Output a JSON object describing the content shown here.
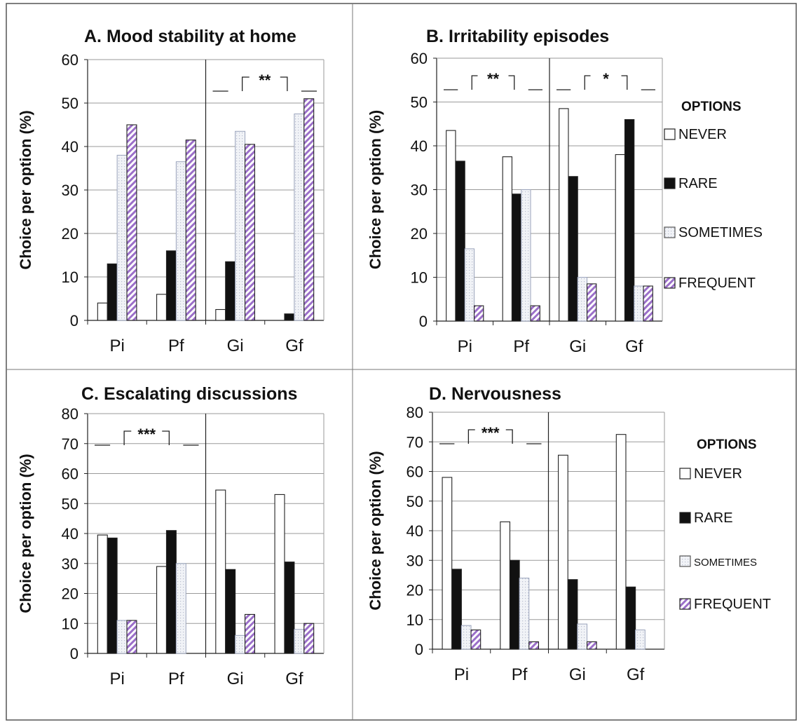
{
  "colors": {
    "never": "#ffffff",
    "rare": "#111111",
    "sometimes": "#f1f3f7",
    "frequent": "#9b6fc9",
    "grid": "#9a9a9a",
    "text": "#111111"
  },
  "icons": {
    "never": "white-box",
    "rare": "black-box",
    "sometimes": "dotted-box",
    "frequent": "hatched-box"
  },
  "chart_data": [
    {
      "type": "bar",
      "title": "A.   Mood stability at home",
      "ylabel": "Choice per option (%)",
      "categories": [
        "Pi",
        "Pf",
        "Gi",
        "Gf"
      ],
      "ylim": [
        0,
        60
      ],
      "yticks": [
        0,
        10,
        20,
        30,
        40,
        50,
        60
      ],
      "series": [
        {
          "name": "NEVER",
          "values": [
            4,
            6,
            2.5,
            0
          ]
        },
        {
          "name": "RARE",
          "values": [
            13,
            16,
            13.5,
            1.5
          ]
        },
        {
          "name": "SOMETIMES",
          "values": [
            38,
            36.5,
            43.5,
            47.5
          ]
        },
        {
          "name": "FREQUENT",
          "values": [
            45,
            41.5,
            40.5,
            51
          ]
        }
      ],
      "significance": [
        {
          "label": "**",
          "between": [
            "Gi",
            "Gf"
          ]
        }
      ],
      "legend": null
    },
    {
      "type": "bar",
      "title": "B.   Irritability episodes",
      "ylabel": "Choice per option (%)",
      "categories": [
        "Pi",
        "Pf",
        "Gi",
        "Gf"
      ],
      "ylim": [
        0,
        60
      ],
      "yticks": [
        0,
        10,
        20,
        30,
        40,
        50,
        60
      ],
      "series": [
        {
          "name": "NEVER",
          "values": [
            43.5,
            37.5,
            48.5,
            38
          ]
        },
        {
          "name": "RARE",
          "values": [
            36.5,
            29,
            33,
            46
          ]
        },
        {
          "name": "SOMETIMES",
          "values": [
            16.5,
            30,
            10,
            8
          ]
        },
        {
          "name": "FREQUENT",
          "values": [
            3.5,
            3.5,
            8.5,
            8
          ]
        }
      ],
      "significance": [
        {
          "label": "**",
          "between": [
            "Pi",
            "Pf"
          ]
        },
        {
          "label": "*",
          "between": [
            "Gi",
            "Gf"
          ]
        }
      ],
      "legend": {
        "title": "OPTIONS",
        "placement": "right",
        "items": [
          "NEVER",
          "RARE",
          "SOMETIMES",
          "FREQUENT"
        ]
      }
    },
    {
      "type": "bar",
      "title": "C. Escalating discussions",
      "ylabel": "Choice per option (%)",
      "categories": [
        "Pi",
        "Pf",
        "Gi",
        "Gf"
      ],
      "ylim": [
        0,
        80
      ],
      "yticks": [
        0,
        10,
        20,
        30,
        40,
        50,
        60,
        70,
        80
      ],
      "series": [
        {
          "name": "NEVER",
          "values": [
            39.5,
            29,
            54.5,
            53
          ]
        },
        {
          "name": "RARE",
          "values": [
            38.5,
            41,
            28,
            30.5
          ]
        },
        {
          "name": "SOMETIMES",
          "values": [
            11,
            30,
            6,
            8
          ]
        },
        {
          "name": "FREQUENT",
          "values": [
            11,
            0,
            13,
            10
          ]
        }
      ],
      "significance": [
        {
          "label": "***",
          "between": [
            "Pi",
            "Pf"
          ]
        }
      ],
      "legend": null
    },
    {
      "type": "bar",
      "title": "D.   Nervousness",
      "ylabel": "Choice per option (%)",
      "categories": [
        "Pi",
        "Pf",
        "Gi",
        "Gf"
      ],
      "ylim": [
        0,
        80
      ],
      "yticks": [
        0,
        10,
        20,
        30,
        40,
        50,
        60,
        70,
        80
      ],
      "series": [
        {
          "name": "NEVER",
          "values": [
            58,
            43,
            65.5,
            72.5
          ]
        },
        {
          "name": "RARE",
          "values": [
            27,
            30,
            23.5,
            21
          ]
        },
        {
          "name": "SOMETIMES",
          "values": [
            8,
            24,
            8.5,
            6.5
          ]
        },
        {
          "name": "FREQUENT",
          "values": [
            6.5,
            2.5,
            2.5,
            0
          ]
        }
      ],
      "significance": [
        {
          "label": "***",
          "between": [
            "Pi",
            "Pf"
          ]
        }
      ],
      "legend": {
        "title": "OPTIONS",
        "placement": "right",
        "items": [
          "NEVER",
          "RARE",
          "SOMETIMES",
          "FREQUENT"
        ]
      }
    }
  ]
}
